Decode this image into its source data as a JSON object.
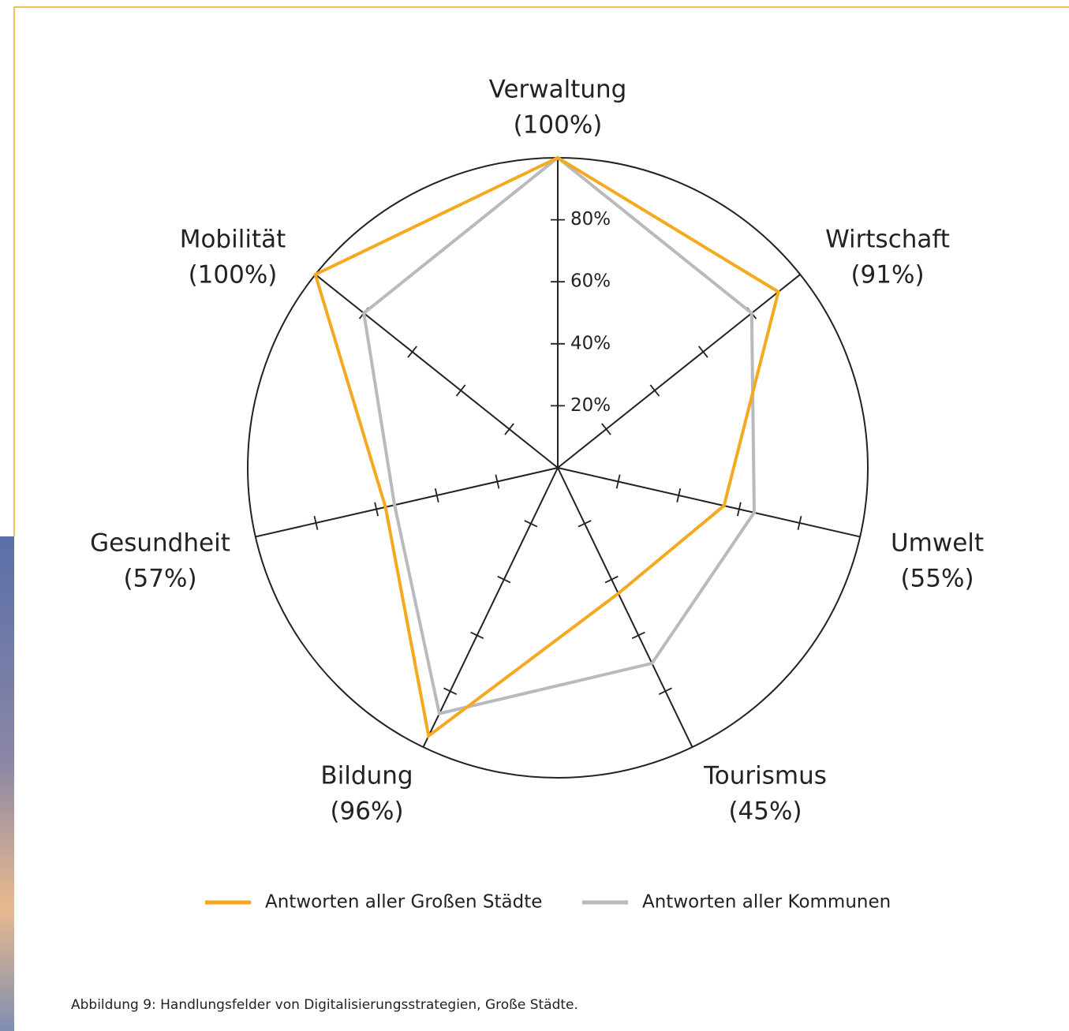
{
  "chart_data": {
    "type": "radar",
    "categories": [
      "Verwaltung",
      "Wirtschaft",
      "Umwelt",
      "Tourismus",
      "Bildung",
      "Gesundheit",
      "Mobilität"
    ],
    "series": [
      {
        "name": "Antworten aller Großen Städte",
        "color": "#f5a91f",
        "values": [
          100,
          91,
          55,
          45,
          96,
          57,
          100
        ],
        "value_labels": [
          "(100%)",
          "(91%)",
          "(55%)",
          "(45%)",
          "(96%)",
          "(57%)",
          "(100%)"
        ]
      },
      {
        "name": "Antworten aller Kommunen",
        "color": "#b9babd",
        "values": [
          100,
          80,
          65,
          70,
          88,
          54,
          80
        ]
      }
    ],
    "ylim": [
      0,
      100
    ],
    "yticks": [
      {
        "value": 20,
        "label": "20%"
      },
      {
        "value": 40,
        "label": "40%"
      },
      {
        "value": 60,
        "label": "60%"
      },
      {
        "value": 80,
        "label": "80%"
      }
    ],
    "caption": "Abbildung 9: Handlungsfelder von Digitalisierungsstrategien, Große Städte."
  }
}
